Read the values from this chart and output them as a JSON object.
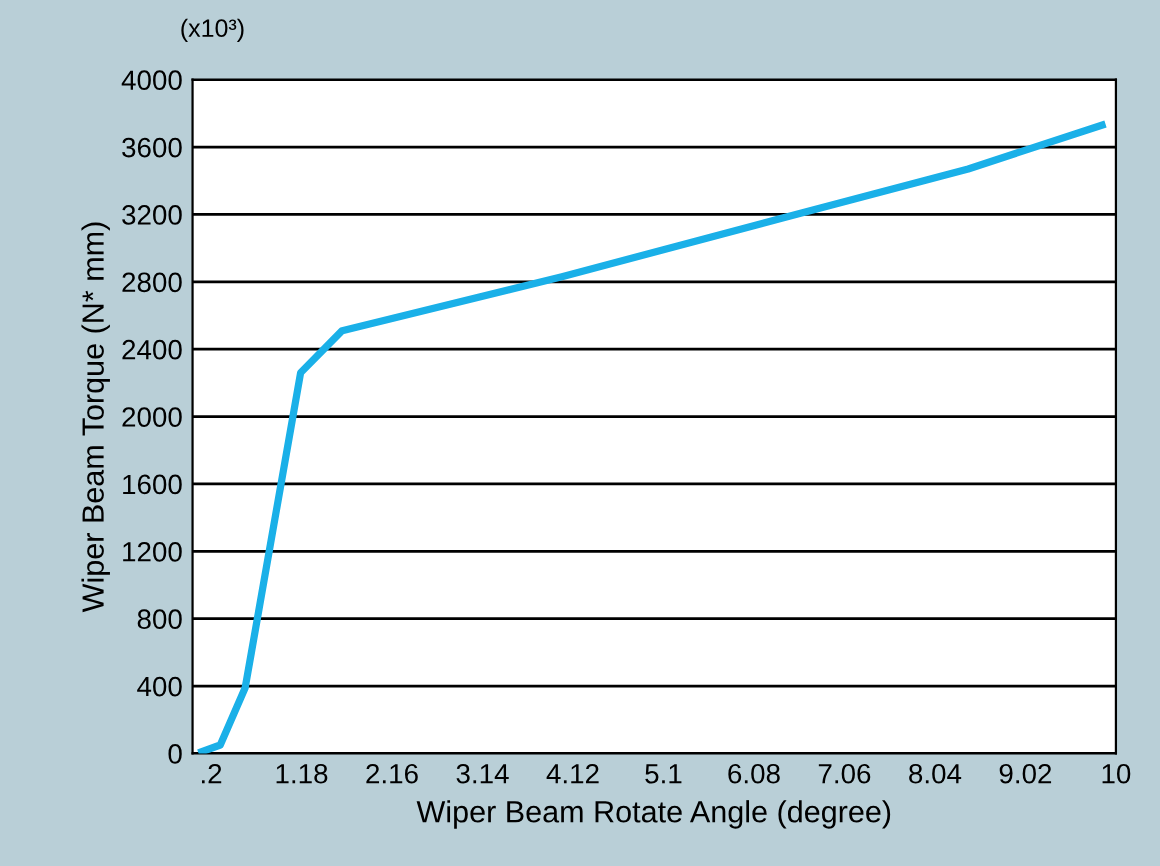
{
  "chart_data": {
    "type": "line",
    "xlabel": "Wiper Beam Rotate Angle (degree)",
    "ylabel": "Wiper Beam Torque (N* mm)",
    "annotations": [
      "(x10³)"
    ],
    "x": [
      0.1,
      0.3,
      0.57,
      1.17,
      1.62,
      4.0,
      6.4,
      8.4,
      9.85
    ],
    "series": [
      {
        "color": "#1ab0e8",
        "values": [
          10,
          50,
          390,
          2260,
          2510,
          2830,
          3180,
          3470,
          3730
        ]
      }
    ],
    "xlim": [
      0,
      10
    ],
    "xticks": [
      {
        "value": 0.2,
        "label": ".2"
      },
      1.18,
      2.16,
      3.14,
      4.12,
      5.1,
      6.08,
      7.06,
      8.04,
      9.02,
      10
    ],
    "ylim": [
      0,
      4000
    ],
    "yticks": [
      0,
      400,
      800,
      1200,
      1600,
      2000,
      2400,
      2800,
      3200,
      3600,
      4000
    ],
    "grid": "y",
    "legend": false,
    "marker": "none",
    "line_style": "solid"
  }
}
